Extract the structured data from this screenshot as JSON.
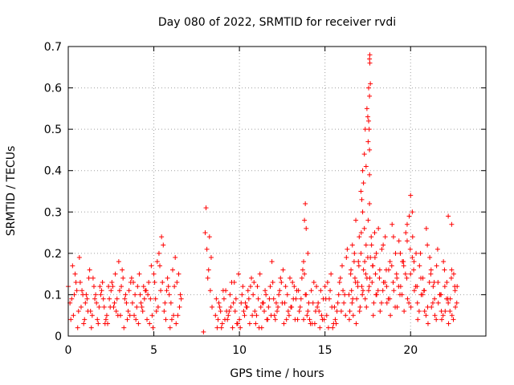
{
  "chart_data": {
    "type": "scatter",
    "title": "Day 080 of 2022, SRMTID for receiver rvdi",
    "xlabel": "GPS time / hours",
    "ylabel": "SRMTID / TECUs",
    "xlim": [
      0,
      24.4
    ],
    "ylim": [
      0,
      0.7
    ],
    "x_ticks": [
      0,
      5,
      10,
      15,
      20
    ],
    "x_tick_labels": [
      "0",
      "5",
      "10",
      "15",
      "20"
    ],
    "y_ticks": [
      0,
      0.1,
      0.2,
      0.3,
      0.4,
      0.5,
      0.6,
      0.7
    ],
    "y_tick_labels": [
      "0",
      "0.1",
      "0.2",
      "0.3",
      "0.4",
      "0.5",
      "0.6",
      "0.7"
    ],
    "grid": true,
    "marker": "+",
    "marker_color": "#ff0000",
    "series": [
      {
        "name": "SRMTID",
        "x": [
          0.0,
          0.2,
          0.4,
          0.6,
          0.8,
          1.0,
          1.2,
          1.4,
          1.6,
          1.8,
          2.0,
          2.2,
          2.4,
          2.6,
          2.8,
          3.0,
          3.2,
          3.4,
          3.6,
          3.8,
          4.0,
          4.2,
          4.4,
          4.6,
          4.8,
          5.0,
          5.2,
          5.4,
          5.6,
          5.8,
          6.0,
          6.2,
          6.4,
          6.6,
          0.1,
          0.3,
          0.5,
          0.7,
          0.9,
          1.1,
          1.3,
          1.5,
          1.7,
          1.9,
          2.1,
          2.3,
          2.5,
          2.7,
          2.9,
          3.1,
          3.3,
          3.5,
          3.7,
          3.9,
          4.1,
          4.3,
          4.5,
          4.7,
          4.9,
          5.1,
          5.3,
          5.5,
          5.7,
          5.9,
          6.1,
          6.3,
          6.5,
          0.15,
          0.45,
          0.75,
          1.05,
          1.35,
          1.65,
          1.95,
          2.25,
          2.55,
          2.85,
          3.15,
          3.45,
          3.75,
          4.05,
          4.35,
          4.65,
          4.95,
          5.25,
          5.55,
          5.85,
          6.15,
          6.45,
          0.25,
          0.55,
          0.85,
          1.15,
          1.45,
          1.75,
          2.05,
          2.35,
          2.65,
          2.95,
          3.25,
          3.55,
          3.85,
          4.15,
          4.45,
          4.75,
          5.05,
          5.35,
          5.65,
          5.95,
          6.25,
          6.55,
          0.35,
          0.65,
          0.95,
          1.25,
          1.55,
          1.85,
          2.15,
          2.45,
          2.75,
          3.05,
          3.35,
          3.65,
          3.95,
          4.25,
          4.55,
          4.85,
          5.15,
          5.45,
          5.75,
          6.05,
          6.35,
          7.9,
          8.0,
          8.1,
          8.2,
          8.3,
          8.4,
          8.05,
          8.15,
          8.25,
          8.35,
          8.6,
          8.8,
          9.0,
          9.2,
          9.4,
          9.6,
          9.8,
          10.0,
          10.2,
          10.4,
          10.6,
          10.8,
          11.0,
          11.2,
          11.4,
          11.6,
          11.8,
          12.0,
          12.2,
          12.4,
          12.6,
          12.8,
          13.0,
          13.2,
          13.4,
          13.6,
          13.8,
          14.0,
          14.2,
          14.4,
          14.6,
          14.8,
          15.0,
          15.2,
          15.4,
          15.6,
          15.8,
          16.0,
          16.2,
          8.7,
          8.9,
          9.1,
          9.3,
          9.5,
          9.7,
          9.9,
          10.1,
          10.3,
          10.5,
          10.7,
          10.9,
          11.1,
          11.3,
          11.5,
          11.7,
          11.9,
          12.1,
          12.3,
          12.5,
          12.7,
          12.9,
          13.1,
          13.3,
          13.5,
          13.7,
          13.9,
          14.1,
          14.3,
          14.5,
          14.7,
          14.9,
          15.1,
          15.3,
          15.5,
          15.7,
          15.9,
          16.1,
          16.3,
          8.65,
          8.95,
          9.25,
          9.55,
          9.85,
          10.15,
          10.45,
          10.75,
          11.05,
          11.35,
          11.65,
          11.95,
          12.25,
          12.55,
          12.85,
          13.15,
          13.45,
          13.75,
          14.05,
          14.35,
          14.65,
          14.95,
          15.25,
          15.55,
          15.85,
          16.15,
          8.75,
          9.05,
          9.35,
          9.65,
          9.95,
          10.25,
          10.55,
          10.85,
          11.15,
          11.45,
          11.75,
          12.05,
          12.35,
          12.65,
          12.95,
          13.25,
          13.55,
          13.85,
          14.15,
          14.45,
          14.75,
          15.05,
          15.35,
          15.65,
          15.95,
          16.25,
          8.85,
          9.15,
          9.45,
          9.75,
          10.05,
          10.35,
          10.65,
          10.95,
          11.25,
          11.55,
          11.85,
          12.15,
          12.45,
          12.75,
          13.05,
          13.35,
          13.65,
          13.95,
          14.25,
          14.55,
          14.85,
          15.15,
          15.45,
          15.75,
          16.05,
          13.8,
          13.85,
          13.9,
          14.0,
          13.75,
          16.4,
          16.5,
          16.6,
          16.7,
          16.8,
          16.9,
          17.0,
          17.1,
          17.2,
          17.3,
          17.4,
          17.5,
          17.6,
          17.7,
          17.8,
          17.9,
          18.0,
          18.2,
          18.4,
          18.6,
          18.8,
          19.0,
          19.2,
          19.4,
          19.6,
          19.8,
          20.0,
          20.2,
          20.4,
          20.6,
          20.8,
          21.0,
          21.2,
          21.4,
          21.6,
          21.8,
          22.0,
          22.2,
          22.4,
          22.6,
          16.45,
          16.55,
          16.65,
          16.75,
          16.85,
          16.95,
          17.05,
          17.15,
          17.25,
          17.35,
          17.45,
          17.55,
          17.65,
          17.75,
          17.85,
          17.95,
          18.1,
          18.3,
          18.5,
          18.7,
          18.9,
          19.1,
          19.3,
          19.5,
          19.7,
          19.9,
          20.1,
          20.3,
          20.5,
          20.7,
          20.9,
          21.1,
          21.3,
          21.5,
          21.7,
          21.9,
          22.1,
          22.3,
          22.5,
          22.7,
          16.42,
          16.62,
          16.82,
          17.02,
          17.22,
          17.42,
          17.62,
          17.82,
          18.02,
          18.22,
          18.42,
          18.62,
          18.82,
          19.02,
          19.22,
          19.42,
          19.62,
          19.82,
          20.02,
          20.22,
          20.42,
          20.62,
          20.82,
          21.02,
          21.22,
          21.42,
          21.62,
          21.82,
          22.02,
          22.22,
          22.42,
          22.62,
          16.52,
          16.72,
          16.92,
          17.12,
          17.32,
          17.52,
          17.72,
          17.92,
          18.12,
          18.32,
          18.52,
          18.72,
          18.92,
          19.12,
          19.32,
          19.52,
          19.72,
          19.92,
          20.12,
          20.32,
          20.52,
          20.72,
          20.92,
          21.12,
          21.32,
          21.52,
          21.72,
          21.92,
          22.12,
          22.32,
          22.52,
          22.72,
          16.58,
          16.78,
          16.98,
          17.18,
          17.38,
          17.58,
          17.78,
          17.98,
          18.18,
          18.38,
          18.58,
          18.78,
          18.98,
          19.18,
          19.38,
          19.58,
          19.78,
          19.98,
          20.18,
          20.38,
          20.58,
          20.78,
          20.98,
          21.18,
          21.38,
          21.58,
          21.78,
          21.98,
          22.18,
          22.38,
          22.58,
          17.1,
          17.2,
          17.3,
          17.35,
          17.45,
          17.5,
          17.55,
          17.6,
          17.62,
          17.65,
          17.58,
          17.52,
          17.4,
          17.25,
          17.15,
          17.6,
          17.6,
          17.6,
          17.55,
          17.62,
          20.0,
          20.1,
          19.8,
          22.2,
          22.4
        ],
        "y": [
          0.12,
          0.09,
          0.15,
          0.06,
          0.11,
          0.08,
          0.14,
          0.05,
          0.1,
          0.07,
          0.13,
          0.04,
          0.09,
          0.12,
          0.06,
          0.11,
          0.14,
          0.08,
          0.05,
          0.13,
          0.07,
          0.1,
          0.12,
          0.04,
          0.09,
          0.15,
          0.18,
          0.11,
          0.06,
          0.14,
          0.08,
          0.12,
          0.05,
          0.09,
          0.08,
          0.05,
          0.11,
          0.13,
          0.03,
          0.09,
          0.06,
          0.12,
          0.04,
          0.1,
          0.07,
          0.03,
          0.11,
          0.08,
          0.05,
          0.12,
          0.09,
          0.06,
          0.14,
          0.1,
          0.03,
          0.07,
          0.11,
          0.13,
          0.05,
          0.09,
          0.2,
          0.13,
          0.04,
          0.1,
          0.16,
          0.03,
          0.07,
          0.04,
          0.13,
          0.07,
          0.1,
          0.02,
          0.08,
          0.11,
          0.05,
          0.13,
          0.09,
          0.16,
          0.04,
          0.08,
          0.12,
          0.06,
          0.1,
          0.02,
          0.07,
          0.22,
          0.12,
          0.05,
          0.15,
          0.17,
          0.02,
          0.1,
          0.06,
          0.14,
          0.03,
          0.09,
          0.12,
          0.07,
          0.18,
          0.02,
          0.11,
          0.05,
          0.15,
          0.09,
          0.03,
          0.13,
          0.17,
          0.08,
          0.02,
          0.19,
          0.1,
          0.1,
          0.19,
          0.04,
          0.16,
          0.09,
          0.12,
          0.03,
          0.07,
          0.15,
          0.05,
          0.1,
          0.13,
          0.04,
          0.08,
          0.11,
          0.17,
          0.06,
          0.24,
          0.11,
          0.04,
          0.13,
          0.01,
          0.25,
          0.21,
          0.16,
          0.11,
          0.07,
          0.31,
          0.14,
          0.24,
          0.19,
          0.05,
          0.08,
          0.03,
          0.11,
          0.06,
          0.02,
          0.09,
          0.04,
          0.12,
          0.07,
          0.03,
          0.1,
          0.05,
          0.15,
          0.08,
          0.04,
          0.12,
          0.09,
          0.06,
          0.14,
          0.03,
          0.1,
          0.07,
          0.12,
          0.04,
          0.09,
          0.15,
          0.06,
          0.11,
          0.03,
          0.08,
          0.05,
          0.12,
          0.02,
          0.07,
          0.04,
          0.1,
          0.17,
          0.05,
          0.02,
          0.06,
          0.09,
          0.04,
          0.07,
          0.13,
          0.03,
          0.08,
          0.05,
          0.11,
          0.14,
          0.06,
          0.09,
          0.02,
          0.11,
          0.07,
          0.18,
          0.04,
          0.1,
          0.08,
          0.12,
          0.05,
          0.13,
          0.09,
          0.06,
          0.16,
          0.1,
          0.04,
          0.08,
          0.12,
          0.02,
          0.09,
          0.05,
          0.11,
          0.03,
          0.06,
          0.14,
          0.08,
          0.21,
          0.09,
          0.02,
          0.06,
          0.13,
          0.03,
          0.1,
          0.07,
          0.05,
          0.12,
          0.08,
          0.04,
          0.13,
          0.07,
          0.16,
          0.06,
          0.09,
          0.11,
          0.04,
          0.08,
          0.13,
          0.06,
          0.04,
          0.09,
          0.07,
          0.13,
          0.1,
          0.04,
          0.11,
          0.05,
          0.08,
          0.15,
          0.06,
          0.09,
          0.13,
          0.02,
          0.06,
          0.09,
          0.05,
          0.11,
          0.08,
          0.14,
          0.04,
          0.07,
          0.1,
          0.03,
          0.06,
          0.11,
          0.09,
          0.15,
          0.03,
          0.06,
          0.19,
          0.07,
          0.04,
          0.1,
          0.06,
          0.02,
          0.08,
          0.12,
          0.03,
          0.07,
          0.1,
          0.05,
          0.08,
          0.13,
          0.04,
          0.07,
          0.11,
          0.14,
          0.05,
          0.03,
          0.07,
          0.04,
          0.13,
          0.02,
          0.08,
          0.11,
          0.28,
          0.32,
          0.26,
          0.2,
          0.18,
          0.1,
          0.15,
          0.22,
          0.18,
          0.28,
          0.13,
          0.24,
          0.2,
          0.3,
          0.26,
          0.22,
          0.19,
          0.32,
          0.24,
          0.17,
          0.25,
          0.2,
          0.16,
          0.22,
          0.12,
          0.18,
          0.24,
          0.14,
          0.2,
          0.17,
          0.23,
          0.15,
          0.18,
          0.08,
          0.14,
          0.11,
          0.07,
          0.16,
          0.09,
          0.13,
          0.06,
          0.12,
          0.08,
          0.16,
          0.11,
          0.06,
          0.11,
          0.05,
          0.14,
          0.09,
          0.18,
          0.07,
          0.12,
          0.16,
          0.09,
          0.14,
          0.11,
          0.19,
          0.13,
          0.08,
          0.15,
          0.11,
          0.08,
          0.13,
          0.09,
          0.17,
          0.07,
          0.12,
          0.1,
          0.15,
          0.08,
          0.19,
          0.12,
          0.06,
          0.1,
          0.05,
          0.13,
          0.08,
          0.04,
          0.1,
          0.05,
          0.09,
          0.06,
          0.04,
          0.08,
          0.04,
          0.09,
          0.03,
          0.06,
          0.11,
          0.07,
          0.14,
          0.05,
          0.1,
          0.06,
          0.13,
          0.08,
          0.05,
          0.11,
          0.07,
          0.12,
          0.06,
          0.09,
          0.07,
          0.11,
          0.04,
          0.1,
          0.06,
          0.03,
          0.07,
          0.05,
          0.08,
          0.04,
          0.06,
          0.03,
          0.05,
          0.07,
          0.16,
          0.2,
          0.12,
          0.25,
          0.18,
          0.28,
          0.22,
          0.19,
          0.26,
          0.21,
          0.24,
          0.16,
          0.27,
          0.2,
          0.23,
          0.18,
          0.25,
          0.29,
          0.24,
          0.2,
          0.17,
          0.14,
          0.26,
          0.19,
          0.12,
          0.17,
          0.1,
          0.18,
          0.13,
          0.09,
          0.15,
          0.12,
          0.08,
          0.13,
          0.17,
          0.1,
          0.15,
          0.12,
          0.17,
          0.1,
          0.14,
          0.11,
          0.16,
          0.09,
          0.13,
          0.15,
          0.1,
          0.18,
          0.14,
          0.21,
          0.16,
          0.12,
          0.2,
          0.11,
          0.22,
          0.15,
          0.13,
          0.21,
          0.1,
          0.16,
          0.09,
          0.14,
          0.12,
          0.35,
          0.4,
          0.44,
          0.5,
          0.55,
          0.53,
          0.6,
          0.67,
          0.68,
          0.61,
          0.5,
          0.47,
          0.41,
          0.37,
          0.33,
          0.45,
          0.39,
          0.58,
          0.52,
          0.66,
          0.34,
          0.3,
          0.27,
          0.29,
          0.27
        ]
      }
    ]
  }
}
